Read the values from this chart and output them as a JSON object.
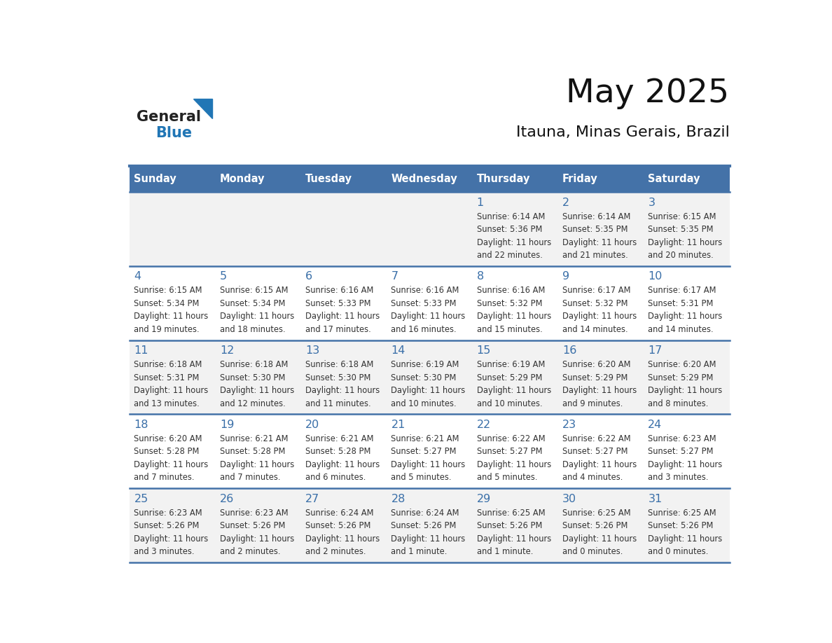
{
  "title": "May 2025",
  "subtitle": "Itauna, Minas Gerais, Brazil",
  "days_of_week": [
    "Sunday",
    "Monday",
    "Tuesday",
    "Wednesday",
    "Thursday",
    "Friday",
    "Saturday"
  ],
  "header_bg": "#4472a8",
  "header_text_color": "#ffffff",
  "row_bg_even": "#f2f2f2",
  "row_bg_odd": "#ffffff",
  "day_text_color": "#3a6fa8",
  "cell_text_color": "#333333",
  "grid_line_color": "#4472a8",
  "background_color": "#ffffff",
  "logo_general_color": "#222222",
  "logo_blue_color": "#2176b5",
  "calendar": [
    [
      null,
      null,
      null,
      null,
      {
        "day": 1,
        "sunrise": "6:14 AM",
        "sunset": "5:36 PM",
        "daylight": "11 hours and 22 minutes"
      },
      {
        "day": 2,
        "sunrise": "6:14 AM",
        "sunset": "5:35 PM",
        "daylight": "11 hours and 21 minutes"
      },
      {
        "day": 3,
        "sunrise": "6:15 AM",
        "sunset": "5:35 PM",
        "daylight": "11 hours and 20 minutes"
      }
    ],
    [
      {
        "day": 4,
        "sunrise": "6:15 AM",
        "sunset": "5:34 PM",
        "daylight": "11 hours and 19 minutes"
      },
      {
        "day": 5,
        "sunrise": "6:15 AM",
        "sunset": "5:34 PM",
        "daylight": "11 hours and 18 minutes"
      },
      {
        "day": 6,
        "sunrise": "6:16 AM",
        "sunset": "5:33 PM",
        "daylight": "11 hours and 17 minutes"
      },
      {
        "day": 7,
        "sunrise": "6:16 AM",
        "sunset": "5:33 PM",
        "daylight": "11 hours and 16 minutes"
      },
      {
        "day": 8,
        "sunrise": "6:16 AM",
        "sunset": "5:32 PM",
        "daylight": "11 hours and 15 minutes"
      },
      {
        "day": 9,
        "sunrise": "6:17 AM",
        "sunset": "5:32 PM",
        "daylight": "11 hours and 14 minutes"
      },
      {
        "day": 10,
        "sunrise": "6:17 AM",
        "sunset": "5:31 PM",
        "daylight": "11 hours and 14 minutes"
      }
    ],
    [
      {
        "day": 11,
        "sunrise": "6:18 AM",
        "sunset": "5:31 PM",
        "daylight": "11 hours and 13 minutes"
      },
      {
        "day": 12,
        "sunrise": "6:18 AM",
        "sunset": "5:30 PM",
        "daylight": "11 hours and 12 minutes"
      },
      {
        "day": 13,
        "sunrise": "6:18 AM",
        "sunset": "5:30 PM",
        "daylight": "11 hours and 11 minutes"
      },
      {
        "day": 14,
        "sunrise": "6:19 AM",
        "sunset": "5:30 PM",
        "daylight": "11 hours and 10 minutes"
      },
      {
        "day": 15,
        "sunrise": "6:19 AM",
        "sunset": "5:29 PM",
        "daylight": "11 hours and 10 minutes"
      },
      {
        "day": 16,
        "sunrise": "6:20 AM",
        "sunset": "5:29 PM",
        "daylight": "11 hours and 9 minutes"
      },
      {
        "day": 17,
        "sunrise": "6:20 AM",
        "sunset": "5:29 PM",
        "daylight": "11 hours and 8 minutes"
      }
    ],
    [
      {
        "day": 18,
        "sunrise": "6:20 AM",
        "sunset": "5:28 PM",
        "daylight": "11 hours and 7 minutes"
      },
      {
        "day": 19,
        "sunrise": "6:21 AM",
        "sunset": "5:28 PM",
        "daylight": "11 hours and 7 minutes"
      },
      {
        "day": 20,
        "sunrise": "6:21 AM",
        "sunset": "5:28 PM",
        "daylight": "11 hours and 6 minutes"
      },
      {
        "day": 21,
        "sunrise": "6:21 AM",
        "sunset": "5:27 PM",
        "daylight": "11 hours and 5 minutes"
      },
      {
        "day": 22,
        "sunrise": "6:22 AM",
        "sunset": "5:27 PM",
        "daylight": "11 hours and 5 minutes"
      },
      {
        "day": 23,
        "sunrise": "6:22 AM",
        "sunset": "5:27 PM",
        "daylight": "11 hours and 4 minutes"
      },
      {
        "day": 24,
        "sunrise": "6:23 AM",
        "sunset": "5:27 PM",
        "daylight": "11 hours and 3 minutes"
      }
    ],
    [
      {
        "day": 25,
        "sunrise": "6:23 AM",
        "sunset": "5:26 PM",
        "daylight": "11 hours and 3 minutes"
      },
      {
        "day": 26,
        "sunrise": "6:23 AM",
        "sunset": "5:26 PM",
        "daylight": "11 hours and 2 minutes"
      },
      {
        "day": 27,
        "sunrise": "6:24 AM",
        "sunset": "5:26 PM",
        "daylight": "11 hours and 2 minutes"
      },
      {
        "day": 28,
        "sunrise": "6:24 AM",
        "sunset": "5:26 PM",
        "daylight": "11 hours and 1 minute"
      },
      {
        "day": 29,
        "sunrise": "6:25 AM",
        "sunset": "5:26 PM",
        "daylight": "11 hours and 1 minute"
      },
      {
        "day": 30,
        "sunrise": "6:25 AM",
        "sunset": "5:26 PM",
        "daylight": "11 hours and 0 minutes"
      },
      {
        "day": 31,
        "sunrise": "6:25 AM",
        "sunset": "5:26 PM",
        "daylight": "11 hours and 0 minutes"
      }
    ]
  ]
}
